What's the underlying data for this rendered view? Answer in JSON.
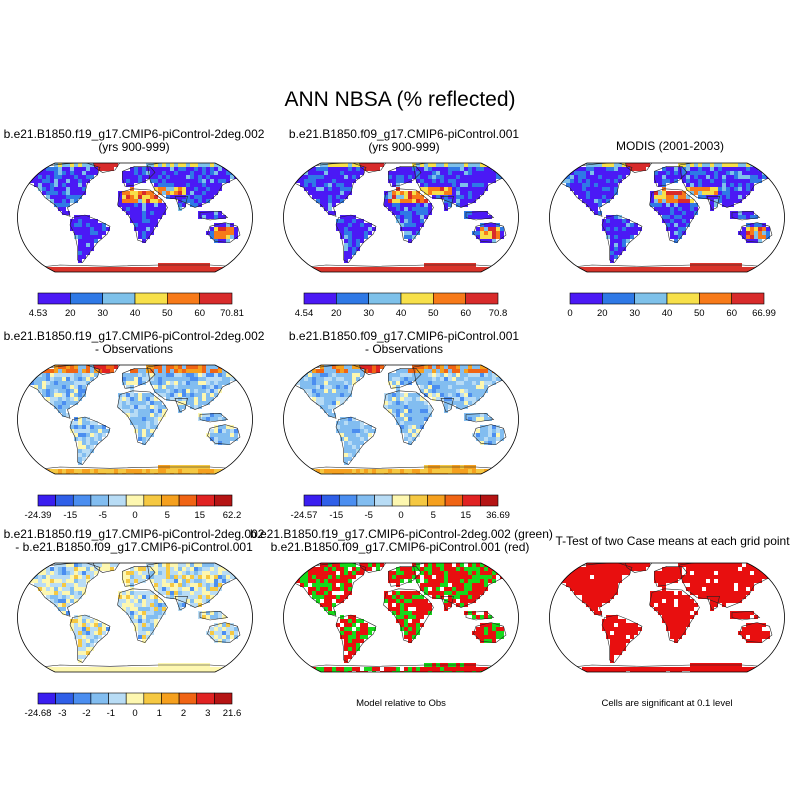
{
  "title": "ANN NBSA (% reflected)",
  "colors": {
    "abs_palette": [
      "#4b19f5",
      "#2f79e6",
      "#7ec1ea",
      "#f7e04a",
      "#f77a19",
      "#d82b2b"
    ],
    "diff_palette": [
      "#3a1ef0",
      "#2f5fe8",
      "#4b8ef0",
      "#82bdf0",
      "#b8dcf5",
      "#fdf7b0",
      "#f5c842",
      "#f5a01e",
      "#f06414",
      "#e02222",
      "#b51414"
    ],
    "green": "#16d81b",
    "red": "#e80f0f",
    "antarctic_abs": "#d9342b",
    "antarctic_diff": "#f5a032"
  },
  "panels": [
    {
      "title_line1": "b.e21.B1850.f19_g17.CMIP6-piControl-2deg.002",
      "title_line2": "(yrs 900-999)",
      "kind": "abs",
      "colorbar": {
        "palette": "abs",
        "labels": [
          "4.53",
          "20",
          "30",
          "40",
          "50",
          "60",
          "70.81"
        ]
      }
    },
    {
      "title_line1": "b.e21.B1850.f09_g17.CMIP6-piControl.001",
      "title_line2": "(yrs 900-999)",
      "kind": "abs",
      "colorbar": {
        "palette": "abs",
        "labels": [
          "4.54",
          "20",
          "30",
          "40",
          "50",
          "60",
          "70.8"
        ]
      }
    },
    {
      "title_line1": "MODIS (2001-2003)",
      "title_line2": "",
      "kind": "obs",
      "colorbar": {
        "palette": "abs",
        "labels": [
          "0",
          "20",
          "30",
          "40",
          "50",
          "60",
          "66.99"
        ]
      }
    },
    {
      "title_line1": "b.e21.B1850.f19_g17.CMIP6-piControl-2deg.002",
      "title_line2": "- Observations",
      "kind": "diff",
      "colorbar": {
        "palette": "diff",
        "labels": [
          "-24.39",
          "-15",
          "-5",
          "0",
          "5",
          "15",
          "62.2"
        ]
      }
    },
    {
      "title_line1": "b.e21.B1850.f09_g17.CMIP6-piControl.001",
      "title_line2": "- Observations",
      "kind": "diff",
      "colorbar": {
        "palette": "diff",
        "labels": [
          "-24.57",
          "-15",
          "-5",
          "0",
          "5",
          "15",
          "36.69"
        ]
      }
    },
    {
      "title_line1": "b.e21.B1850.f19_g17.CMIP6-piControl-2deg.002",
      "title_line2": "- b.e21.B1850.f09_g17.CMIP6-piControl.001",
      "kind": "diff2",
      "colorbar": {
        "palette": "diff",
        "labels": [
          "-24.68",
          "-3",
          "-2",
          "-1",
          "0",
          "1",
          "2",
          "3",
          "21.6"
        ]
      }
    },
    {
      "title_line1": "b.e21.B1850.f19_g17.CMIP6-piControl-2deg.002 (green)",
      "title_line2": "b.e21.B1850.f09_g17.CMIP6-piControl.001 (red)",
      "kind": "rg",
      "note": "Model relative to Obs"
    },
    {
      "title_line1": "T-Test of two Case means at each grid point",
      "title_line2": "",
      "kind": "sig",
      "note": "Cells are significant at 0.1 level"
    }
  ]
}
